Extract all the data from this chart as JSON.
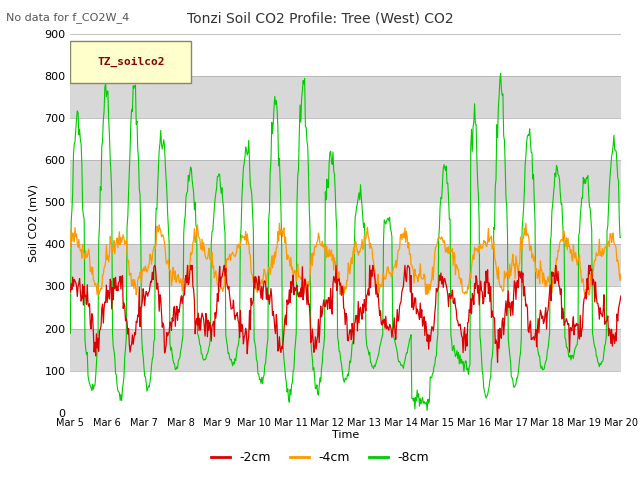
{
  "title": "Tonzi Soil CO2 Profile: Tree (West) CO2",
  "subtitle": "No data for f_CO2W_4",
  "ylabel": "Soil CO2 (mV)",
  "xlabel": "Time",
  "legend_label": "TZ_soilco2",
  "series_labels": [
    "-2cm",
    "-4cm",
    "-8cm"
  ],
  "series_colors": [
    "#dd0000",
    "#ff9900",
    "#00cc00"
  ],
  "ylim": [
    0,
    900
  ],
  "yticks": [
    0,
    100,
    200,
    300,
    400,
    500,
    600,
    700,
    800,
    900
  ],
  "xtick_labels": [
    "Mar 5",
    "Mar 6",
    "Mar 7",
    "Mar 8",
    "Mar 9",
    "Mar 10",
    "Mar 11",
    "Mar 12",
    "Mar 13",
    "Mar 14",
    "Mar 15",
    "Mar 16",
    "Mar 17",
    "Mar 18",
    "Mar 19",
    "Mar 20"
  ],
  "bg_color": "#ffffff",
  "plot_bg_color": "#f0f0f0",
  "band_colors": [
    "#ffffff",
    "#d8d8d8"
  ],
  "legend_box_color": "#ffffcc",
  "legend_box_edge": "#cc0000"
}
